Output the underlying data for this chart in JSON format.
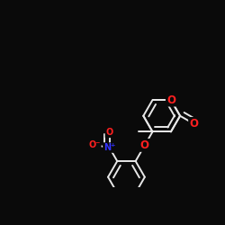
{
  "background": "#0a0a0a",
  "bond_color": "#e8e8e8",
  "bond_lw": 1.4,
  "dbo": 0.022,
  "atom_colors": {
    "O": "#ff2020",
    "N": "#3333ff"
  },
  "fs": 8.5,
  "fig_size": [
    2.5,
    2.5
  ],
  "dpi": 100,
  "xlim": [
    0.0,
    1.0
  ],
  "ylim": [
    0.18,
    0.85
  ]
}
